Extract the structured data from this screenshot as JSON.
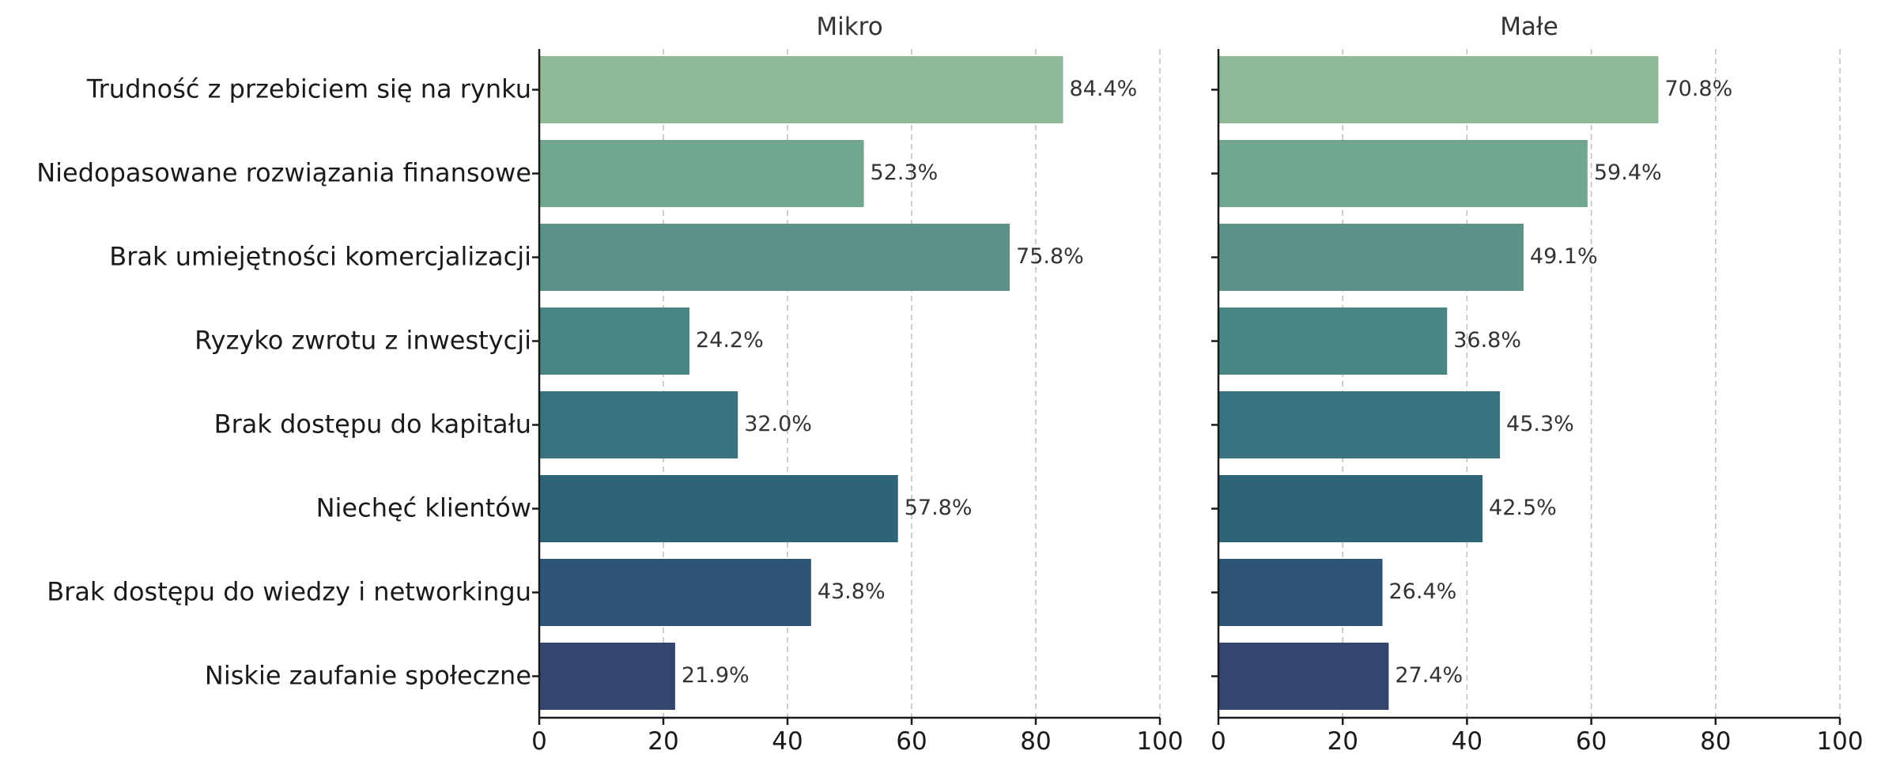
{
  "chart_data": [
    {
      "type": "bar",
      "orientation": "horizontal",
      "title": "Mikro",
      "categories": [
        "Trudność z przebiciem się na rynku",
        "Niedopasowane rozwiązania finansowe",
        "Brak umiejętności komercjalizacji",
        "Ryzyko zwrotu z inwestycji",
        "Brak dostępu do kapitału",
        "Niechęć klientów",
        "Brak dostępu do wiedzy i networkingu",
        "Niskie zaufanie społeczne"
      ],
      "values": [
        84.4,
        52.3,
        75.8,
        24.2,
        32.0,
        57.8,
        43.8,
        21.9
      ],
      "value_labels": [
        "84.4%",
        "52.3%",
        "75.8%",
        "24.2%",
        "32.0%",
        "57.8%",
        "43.8%",
        "21.9%"
      ],
      "xlim": [
        0,
        100
      ],
      "xticks": [
        0,
        20,
        40,
        60,
        80,
        100
      ],
      "grid": "vertical dashed"
    },
    {
      "type": "bar",
      "orientation": "horizontal",
      "title": "Małe",
      "categories": [
        "Trudność z przebiciem się na rynku",
        "Niedopasowane rozwiązania finansowe",
        "Brak umiejętności komercjalizacji",
        "Ryzyko zwrotu z inwestycji",
        "Brak dostępu do kapitału",
        "Niechęć klientów",
        "Brak dostępu do wiedzy i networkingu",
        "Niskie zaufanie społeczne"
      ],
      "values": [
        70.8,
        59.4,
        49.1,
        36.8,
        45.3,
        42.5,
        26.4,
        27.4
      ],
      "value_labels": [
        "70.8%",
        "59.4%",
        "49.1%",
        "36.8%",
        "45.3%",
        "42.5%",
        "26.4%",
        "27.4%"
      ],
      "xlim": [
        0,
        100
      ],
      "xticks": [
        0,
        20,
        40,
        60,
        80,
        100
      ],
      "grid": "vertical dashed"
    }
  ],
  "colors": [
    "#8fb996",
    "#72a78f",
    "#5b9388",
    "#498583",
    "#38737f",
    "#2e6478",
    "#2e5577",
    "#34466e"
  ]
}
